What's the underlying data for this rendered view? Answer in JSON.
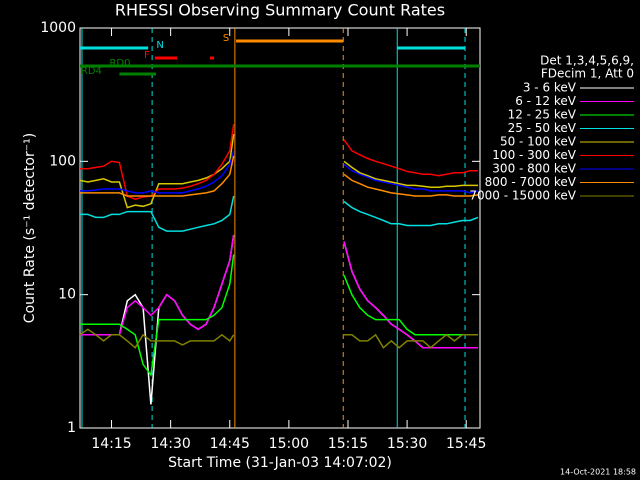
{
  "chart_data": {
    "type": "line",
    "title": "RHESSI Observing Summary Count Rates",
    "x_label": "Start Time (31-Jan-03 14:07:02)",
    "y_label": "Count Rate (s⁻¹ detector⁻¹)",
    "footer": "14-Oct-2021 18:58",
    "legend_header": [
      "Det 1,3,4,5,6,9,",
      "FDecim 1, Att 0"
    ],
    "legend": "right",
    "log_y": true,
    "ylim": [
      1,
      1000
    ],
    "yticks": [
      1,
      10,
      100,
      1000
    ],
    "xlim": [
      7,
      108.5
    ],
    "xticks": [
      {
        "value": 15,
        "label": "14:15"
      },
      {
        "value": 30,
        "label": "14:30"
      },
      {
        "value": 45,
        "label": "14:45"
      },
      {
        "value": 60,
        "label": "15:00"
      },
      {
        "value": 75,
        "label": "15:15"
      },
      {
        "value": 90,
        "label": "15:30"
      },
      {
        "value": 105,
        "label": "15:45"
      }
    ],
    "x": [
      7,
      9,
      11,
      13,
      15,
      17,
      19,
      21,
      23,
      25,
      27,
      29,
      31,
      33,
      35,
      37,
      39,
      41,
      43,
      45,
      46,
      60,
      74,
      76,
      78,
      80,
      82,
      84,
      86,
      88,
      90,
      92,
      94,
      96,
      98,
      100,
      102,
      104,
      106,
      108
    ],
    "series": [
      {
        "name": "3 - 6 keV",
        "color": "#ffffff",
        "values": [
          5,
          5,
          5,
          5,
          5,
          5,
          9,
          10,
          8,
          1.5,
          8,
          10,
          9,
          7,
          6,
          5.5,
          6,
          8,
          12,
          18,
          28,
          null,
          25,
          15,
          11,
          9,
          8,
          7,
          6,
          5.5,
          5,
          4.5,
          4,
          4,
          4,
          4,
          4,
          4,
          4,
          4
        ]
      },
      {
        "name": "6 - 12 keV",
        "color": "#ff00ff",
        "values": [
          5,
          5,
          5,
          5,
          5,
          5,
          8,
          9,
          8,
          7,
          8,
          10,
          9,
          7,
          6,
          5.5,
          6,
          8,
          12,
          18,
          28,
          null,
          25,
          15,
          11,
          9,
          8,
          7,
          6,
          5.5,
          5,
          4.5,
          4,
          4,
          4,
          4,
          4,
          4,
          4,
          4
        ]
      },
      {
        "name": "12 - 25 keV",
        "color": "#00ff00",
        "values": [
          6,
          6,
          6,
          6,
          6,
          6,
          5.5,
          5,
          3,
          2.5,
          6.5,
          6.5,
          6.5,
          6.5,
          6.5,
          6.5,
          6.5,
          7,
          8,
          12,
          20,
          null,
          14,
          10,
          8,
          7,
          6.5,
          6.5,
          6.5,
          6.5,
          5.5,
          5,
          5,
          5,
          5,
          5,
          5,
          5,
          5,
          5
        ]
      },
      {
        "name": "25 - 50 keV",
        "color": "#00e0e0",
        "values": [
          40,
          40,
          38,
          38,
          40,
          40,
          42,
          42,
          42,
          42,
          32,
          30,
          30,
          30,
          31,
          32,
          33,
          34,
          36,
          40,
          55,
          null,
          50,
          45,
          42,
          40,
          38,
          36,
          34,
          34,
          33,
          33,
          33,
          33,
          34,
          34,
          35,
          36,
          36,
          38
        ]
      },
      {
        "name": "50 - 100 keV",
        "color": "#d8c800",
        "values": [
          72,
          70,
          72,
          74,
          70,
          70,
          45,
          47,
          46,
          48,
          68,
          68,
          68,
          68,
          70,
          72,
          75,
          80,
          88,
          100,
          160,
          null,
          100,
          90,
          82,
          78,
          74,
          72,
          70,
          68,
          66,
          66,
          65,
          64,
          64,
          65,
          65,
          66,
          66,
          66
        ]
      },
      {
        "name": "100 - 300 keV",
        "color": "#ff0000",
        "values": [
          88,
          88,
          90,
          92,
          100,
          98,
          55,
          52,
          54,
          55,
          62,
          62,
          62,
          63,
          65,
          68,
          72,
          80,
          95,
          120,
          190,
          null,
          145,
          120,
          112,
          105,
          100,
          96,
          92,
          88,
          84,
          82,
          80,
          80,
          78,
          80,
          82,
          82,
          85,
          85
        ]
      },
      {
        "name": "300 - 800 keV",
        "color": "#0000ff",
        "values": [
          60,
          60,
          61,
          62,
          62,
          62,
          60,
          58,
          58,
          60,
          58,
          58,
          58,
          58,
          60,
          62,
          65,
          70,
          78,
          95,
          120,
          null,
          95,
          85,
          80,
          76,
          72,
          70,
          68,
          66,
          64,
          62,
          62,
          60,
          60,
          60,
          60,
          60,
          58,
          60
        ]
      },
      {
        "name": "800 - 7000 keV",
        "color": "#ff8c00",
        "values": [
          58,
          58,
          58,
          58,
          58,
          58,
          55,
          55,
          55,
          55,
          55,
          55,
          55,
          55,
          56,
          57,
          58,
          60,
          68,
          80,
          110,
          null,
          80,
          72,
          68,
          64,
          62,
          60,
          58,
          57,
          56,
          55,
          55,
          55,
          56,
          56,
          55,
          55,
          55,
          56
        ]
      },
      {
        "name": "7000 - 15000 keV",
        "color": "#808000",
        "values": [
          5,
          5.5,
          5,
          4.5,
          5,
          5,
          4.5,
          4,
          5,
          4.5,
          4.5,
          4.5,
          4.5,
          4.2,
          4.5,
          4.5,
          4.5,
          4.5,
          5,
          4.5,
          5,
          null,
          5,
          5,
          4.5,
          4.5,
          5,
          4,
          4.5,
          4,
          4.5,
          4.5,
          4.5,
          4,
          4.5,
          5,
          4.5,
          5,
          5,
          5
        ]
      }
    ],
    "markers": [
      {
        "x": 7.5,
        "color": "#00e0e0",
        "dashed": false
      },
      {
        "x": 25.3,
        "color": "#00e0e0",
        "dashed": true
      },
      {
        "x": 87.5,
        "color": "#00e0e0",
        "dashed": false
      },
      {
        "x": 104.7,
        "color": "#00e0e0",
        "dashed": true
      },
      {
        "x": 46.3,
        "color": "#ff8c00",
        "dashed": false
      },
      {
        "x": 73.8,
        "color": "#ff8c00",
        "dashed": true
      }
    ],
    "flags": [
      {
        "label": "N",
        "color": "#00e0e0",
        "spans": [
          [
            7,
            24.3
          ],
          [
            87.5,
            104.7
          ]
        ]
      },
      {
        "label": "F",
        "color": "#ff0000",
        "spans": [
          [
            26,
            31.6
          ],
          [
            40,
            41
          ]
        ]
      },
      {
        "label": "S",
        "color": "#ff8c00",
        "spans": [
          [
            46.6,
            73.8
          ]
        ]
      },
      {
        "label": "RD0",
        "color": "#008000",
        "spans": [
          [
            7,
            108.5
          ]
        ]
      },
      {
        "label": "RD4",
        "color": "#008000",
        "spans": [
          [
            17,
            26.3
          ]
        ]
      }
    ]
  }
}
